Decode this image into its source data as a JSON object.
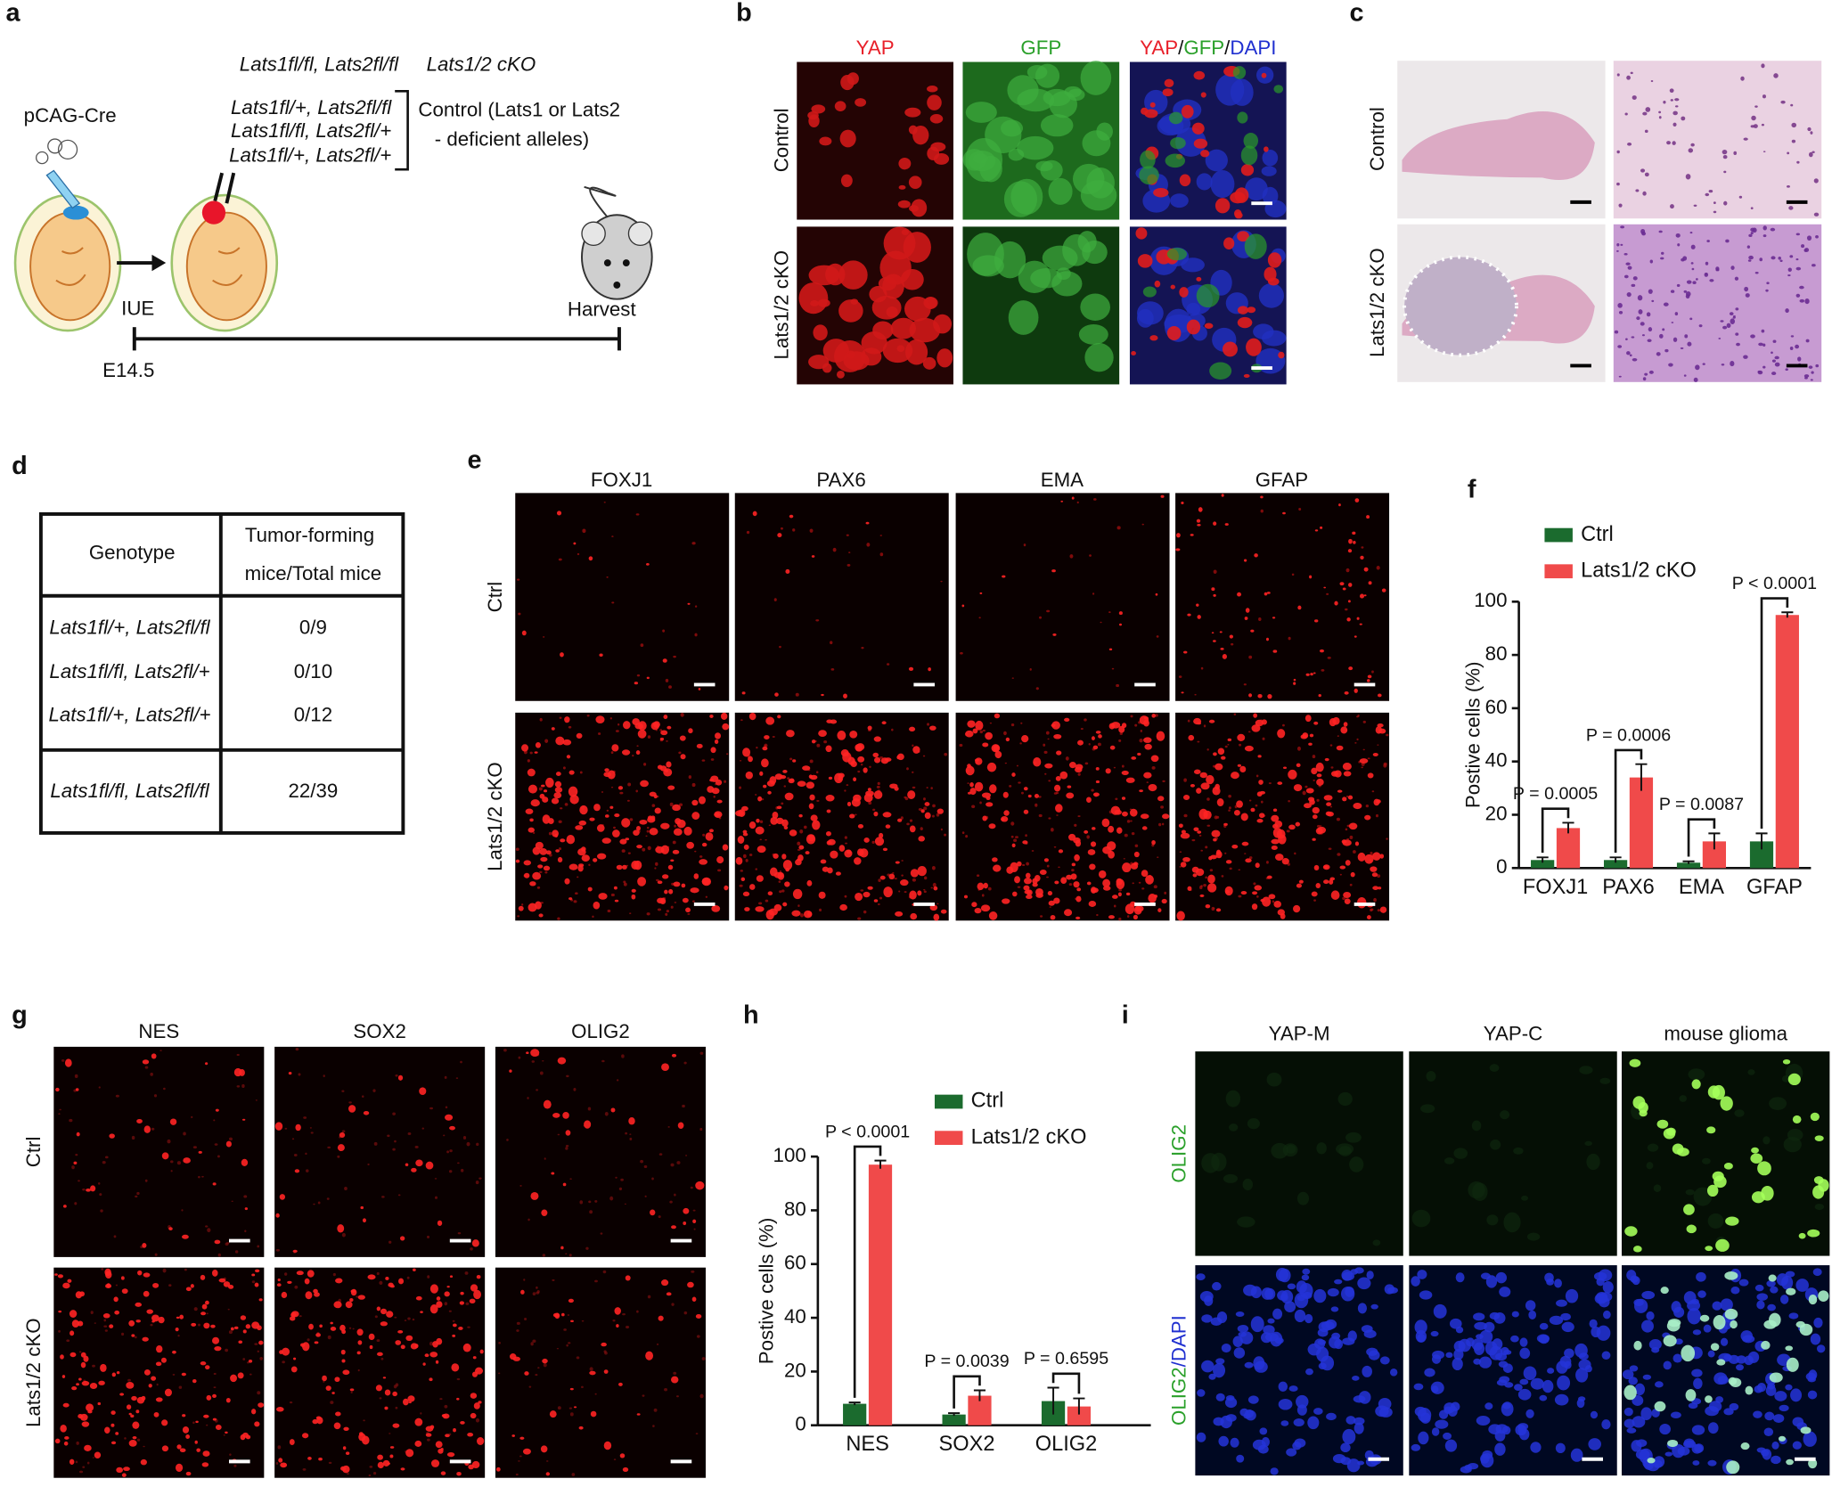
{
  "panel_labels": [
    "a",
    "b",
    "c",
    "d",
    "e",
    "f",
    "g",
    "h",
    "i"
  ],
  "panel_a": {
    "cre": "pCAG-Cre",
    "cko_genotype": "Lats1fl/fl, Lats2fl/fl",
    "cko_name": "Lats1/2 cKO",
    "control_genotypes": [
      "Lats1fl/+, Lats2fl/fl",
      "Lats1fl/fl, Lats2fl/+",
      "Lats1fl/+, Lats2fl/+"
    ],
    "control_text": [
      "Control (Lats1 or Lats2",
      "- deficient alleles)"
    ],
    "start": "IUE",
    "end": "Harvest",
    "age": "E14.5"
  },
  "panel_b": {
    "columns": [
      "YAP",
      "GFP"
    ],
    "merge": [
      "YAP",
      "/",
      "GFP",
      "/",
      "DAPI"
    ],
    "rows": [
      "Control",
      "Lats1/2 cKO"
    ]
  },
  "panel_c": {
    "rows": [
      "Control",
      "Lats1/2 cKO"
    ]
  },
  "panel_d": {
    "table": {
      "header": [
        "Genotype",
        [
          "Tumor-forming",
          "mice/Total mice"
        ]
      ],
      "rows": [
        [
          "Lats1fl/+, Lats2fl/fl",
          "0/9"
        ],
        [
          "Lats1fl/fl, Lats2fl/+",
          "0/10"
        ],
        [
          "Lats1fl/+, Lats2fl/+",
          "0/12"
        ],
        [
          "Lats1fl/fl, Lats2fl/fl",
          "22/39"
        ]
      ]
    }
  },
  "panel_e": {
    "columns": [
      "FOXJ1",
      "PAX6",
      "EMA",
      "GFAP"
    ],
    "rows": [
      "Ctrl",
      "Lats1/2 cKO"
    ]
  },
  "panel_g": {
    "columns": [
      "NES",
      "SOX2",
      "OLIG2"
    ],
    "rows": [
      "Ctrl",
      "Lats1/2 cKO"
    ]
  },
  "panel_i": {
    "columns": [
      "YAP-M",
      "YAP-C",
      "mouse glioma"
    ],
    "rows": [
      [
        "OLIG2"
      ],
      [
        "OLIG2",
        "/DAPI"
      ]
    ]
  },
  "chart_data": [
    {
      "type": "bar",
      "ylabel": "Postive cells (%)",
      "categories": [
        "FOXJ1",
        "PAX6",
        "EMA",
        "GFAP"
      ],
      "series": [
        {
          "name": "Ctrl",
          "color": "#1b6b2e",
          "values": [
            3,
            3,
            2,
            10
          ],
          "errors": [
            1,
            1,
            0.5,
            3
          ]
        },
        {
          "name": "Lats1/2 cKO",
          "color": "#f04a4a",
          "values": [
            15,
            34,
            10,
            95
          ],
          "errors": [
            2,
            5,
            3,
            1
          ]
        }
      ],
      "ylim": [
        0,
        100
      ],
      "yticks": [
        0,
        20,
        40,
        60,
        80,
        100
      ],
      "annotations": [
        "P = 0.0005",
        "P = 0.0006",
        "P = 0.0087",
        "P < 0.0001"
      ]
    },
    {
      "type": "bar",
      "ylabel": "Postive cells (%)",
      "categories": [
        "NES",
        "SOX2",
        "OLIG2"
      ],
      "series": [
        {
          "name": "Ctrl",
          "color": "#1b6b2e",
          "values": [
            8,
            4,
            9
          ],
          "errors": [
            0.5,
            0.5,
            5
          ]
        },
        {
          "name": "Lats1/2 cKO",
          "color": "#f04a4a",
          "values": [
            97,
            11,
            7
          ],
          "errors": [
            1.5,
            2,
            3
          ]
        }
      ],
      "ylim": [
        0,
        100
      ],
      "yticks": [
        0,
        20,
        40,
        60,
        80,
        100
      ],
      "annotations": [
        "P < 0.0001",
        "P = 0.0039",
        "P = 0.6595"
      ]
    }
  ]
}
